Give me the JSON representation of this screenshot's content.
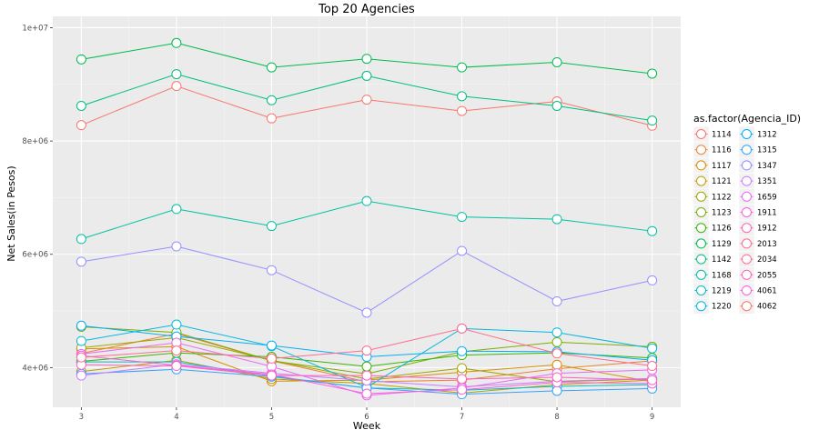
{
  "chart_data": {
    "type": "line",
    "title": "Top 20 Agencies",
    "xlabel": "Week",
    "ylabel": "Net Sales(in Pesos)",
    "x": [
      3,
      4,
      5,
      6,
      7,
      8,
      9
    ],
    "xlim": [
      2.7,
      9.3
    ],
    "ylim": [
      3300000,
      10200000
    ],
    "x_ticks": [
      3,
      4,
      5,
      6,
      7,
      8,
      9
    ],
    "y_ticks": [
      {
        "value": 4000000,
        "label": "4e+06"
      },
      {
        "value": 6000000,
        "label": "6e+06"
      },
      {
        "value": 8000000,
        "label": "8e+06"
      },
      {
        "value": 10000000,
        "label": "1e+07"
      }
    ],
    "grid": true,
    "legend": {
      "title": "as.factor(Agencia_ID)",
      "placement": "right",
      "columns": 2
    },
    "series": [
      {
        "name": "1114",
        "color": "#F8766D",
        "values": [
          8280000,
          8970000,
          8400000,
          8730000,
          8530000,
          8700000,
          8270000
        ]
      },
      {
        "name": "1116",
        "color": "#EA8331",
        "values": [
          4250000,
          4600000,
          4120000,
          3750000,
          3780000,
          3980000,
          4120000
        ]
      },
      {
        "name": "1117",
        "color": "#D89000",
        "values": [
          4330000,
          4370000,
          3760000,
          3780000,
          3920000,
          4050000,
          3750000
        ]
      },
      {
        "name": "1121",
        "color": "#C09B00",
        "values": [
          3930000,
          4130000,
          3800000,
          3720000,
          3550000,
          3700000,
          3780000
        ]
      },
      {
        "name": "1122",
        "color": "#A3A500",
        "values": [
          4350000,
          4530000,
          4130000,
          3800000,
          3990000,
          3750000,
          3800000
        ]
      },
      {
        "name": "1123",
        "color": "#7CAE00",
        "values": [
          4720000,
          4620000,
          4120000,
          3890000,
          4280000,
          4450000,
          4370000
        ]
      },
      {
        "name": "1126",
        "color": "#39B600",
        "values": [
          4110000,
          4260000,
          4190000,
          4020000,
          4220000,
          4260000,
          4170000
        ]
      },
      {
        "name": "1129",
        "color": "#00BB4E",
        "values": [
          9440000,
          9730000,
          9300000,
          9450000,
          9300000,
          9390000,
          9190000
        ]
      },
      {
        "name": "1142",
        "color": "#00BF7D",
        "values": [
          8620000,
          9180000,
          8720000,
          9150000,
          8790000,
          8620000,
          8360000
        ]
      },
      {
        "name": "1168",
        "color": "#00C1A3",
        "values": [
          6270000,
          6800000,
          6500000,
          6940000,
          6660000,
          6620000,
          6410000
        ]
      },
      {
        "name": "1219",
        "color": "#00BFC4",
        "values": [
          4100000,
          4100000,
          3850000,
          3640000,
          3600000,
          3670000,
          3700000
        ]
      },
      {
        "name": "1220",
        "color": "#00BAE0",
        "values": [
          4470000,
          4760000,
          4380000,
          3650000,
          4690000,
          4620000,
          4340000
        ]
      },
      {
        "name": "1312",
        "color": "#00B0F6",
        "values": [
          4740000,
          4550000,
          4390000,
          4190000,
          4290000,
          4280000,
          4130000
        ]
      },
      {
        "name": "1315",
        "color": "#35A2FF",
        "values": [
          3890000,
          3970000,
          3840000,
          3640000,
          3530000,
          3590000,
          3630000
        ]
      },
      {
        "name": "1347",
        "color": "#9590FF",
        "values": [
          5870000,
          6140000,
          5720000,
          4970000,
          6060000,
          5170000,
          5540000
        ]
      },
      {
        "name": "1351",
        "color": "#C77CFF",
        "values": [
          3860000,
          4060000,
          3900000,
          3770000,
          3660000,
          3760000,
          3810000
        ]
      },
      {
        "name": "1659",
        "color": "#E76BF3",
        "values": [
          4240000,
          4440000,
          4020000,
          3510000,
          3640000,
          3900000,
          3960000
        ]
      },
      {
        "name": "1911",
        "color": "#FA62DB",
        "values": [
          4210000,
          4040000,
          3880000,
          3540000,
          3610000,
          3740000,
          3720000
        ]
      },
      {
        "name": "1912",
        "color": "#FF62BC",
        "values": [
          4050000,
          4030000,
          3860000,
          3860000,
          3800000,
          3830000,
          3780000
        ]
      },
      {
        "name": "2013",
        "color": "#FF6C90",
        "values": [
          4180000,
          4300000,
          4160000,
          4300000,
          4690000,
          4250000,
          4030000
        ]
      }
    ],
    "legend_only_entries": [
      "2034",
      "2055",
      "4061",
      "4062"
    ]
  }
}
